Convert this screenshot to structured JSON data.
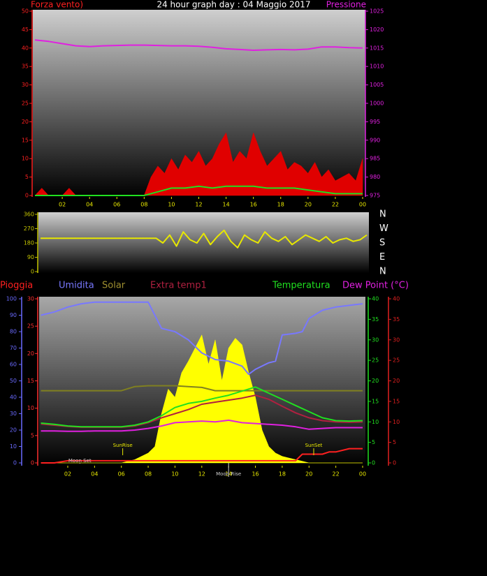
{
  "chart_data": [
    {
      "type": "line",
      "title": "24 hour graph day : 04 Maggio 2017",
      "title_color": "#ffffff",
      "y_label": "Forza vento)",
      "y_color": "#ff2020",
      "y2_label": "Pressione",
      "y2_color": "#e020e0",
      "x_color": "#e8e800",
      "xlim": [
        0,
        24
      ],
      "xticks": [
        {
          "value": 2,
          "label": "02"
        },
        {
          "value": 4,
          "label": "04"
        },
        {
          "value": 6,
          "label": "06"
        },
        {
          "value": 8,
          "label": "08"
        },
        10,
        12,
        14,
        16,
        18,
        20,
        22,
        {
          "value": 24,
          "label": "00"
        }
      ],
      "ylim": [
        0,
        50
      ],
      "yticks": [
        0,
        5,
        10,
        15,
        20,
        25,
        30,
        35,
        40,
        45,
        50
      ],
      "y2lim": [
        975,
        1025
      ],
      "y2ticks": [
        975,
        980,
        985,
        990,
        995,
        1000,
        1005,
        1010,
        1015,
        1020,
        1025
      ],
      "series": [
        {
          "color": "#ff0000",
          "fill": "#e00000",
          "axis": "y",
          "x": [
            0,
            0.5,
            1,
            1.5,
            2,
            2.5,
            3,
            3.5,
            4,
            4.5,
            5,
            5.5,
            6,
            6.5,
            7,
            7.5,
            8,
            8.5,
            9,
            9.5,
            10,
            10.5,
            11,
            11.5,
            12,
            12.5,
            13,
            13.5,
            14,
            14.5,
            15,
            15.5,
            16,
            16.5,
            17,
            17.5,
            18,
            18.5,
            19,
            19.5,
            20,
            20.5,
            21,
            21.5,
            22,
            22.5,
            23,
            23.5,
            24
          ],
          "values": [
            0,
            2,
            0,
            0,
            0,
            2,
            0,
            0,
            0,
            0,
            0,
            0,
            0,
            0,
            0,
            0,
            0,
            5,
            8,
            6,
            10,
            7,
            11,
            9,
            12,
            8,
            10,
            14,
            17,
            9,
            12,
            10,
            17,
            12,
            8,
            10,
            12,
            7,
            9,
            8,
            6,
            9,
            5,
            7,
            4,
            5,
            6,
            4,
            10
          ]
        },
        {
          "color": "#20e020",
          "axis": "y",
          "x": [
            0,
            1,
            2,
            3,
            4,
            5,
            6,
            7,
            8,
            9,
            10,
            11,
            12,
            13,
            14,
            15,
            16,
            17,
            18,
            19,
            20,
            21,
            22,
            23,
            24
          ],
          "values": [
            0,
            0,
            0,
            0,
            0,
            0,
            0,
            0,
            0,
            1,
            2,
            2,
            2.5,
            2,
            2.5,
            2.5,
            2.5,
            2,
            2,
            2,
            1.5,
            1,
            0.5,
            0.5,
            0.5
          ]
        },
        {
          "color": "#e020e0",
          "axis": "y2",
          "x": [
            0,
            1,
            2,
            3,
            4,
            5,
            6,
            7,
            8,
            9,
            10,
            11,
            12,
            13,
            14,
            15,
            16,
            17,
            18,
            19,
            20,
            21,
            22,
            23,
            24
          ],
          "values": [
            1017.2,
            1016.8,
            1016.2,
            1015.6,
            1015.4,
            1015.6,
            1015.7,
            1015.8,
            1015.8,
            1015.7,
            1015.6,
            1015.6,
            1015.5,
            1015.2,
            1014.8,
            1014.6,
            1014.4,
            1014.5,
            1014.6,
            1014.5,
            1014.7,
            1015.3,
            1015.3,
            1015.1,
            1015.0
          ]
        }
      ]
    },
    {
      "type": "line",
      "y_color": "#c8c800",
      "y2_color": "#ffffff",
      "xlim": [
        0,
        24
      ],
      "ylim": [
        0,
        360
      ],
      "yticks": [
        0,
        90,
        180,
        270,
        360
      ],
      "y2lim": [
        0,
        360
      ],
      "y2ticks": [
        {
          "value": 0,
          "label": "N"
        },
        {
          "value": 90,
          "label": "E"
        },
        {
          "value": 180,
          "label": "S"
        },
        {
          "value": 270,
          "label": "W"
        },
        {
          "value": 360,
          "label": "N"
        }
      ],
      "series": [
        {
          "color": "#e8e800",
          "axis": "y",
          "x": [
            0,
            0.5,
            1,
            1.5,
            2,
            2.5,
            3,
            3.5,
            4,
            4.5,
            5,
            5.5,
            6,
            6.5,
            7,
            7.5,
            8,
            8.5,
            9,
            9.5,
            10,
            10.5,
            11,
            11.5,
            12,
            12.5,
            13,
            13.5,
            14,
            14.5,
            15,
            15.5,
            16,
            16.5,
            17,
            17.5,
            18,
            18.5,
            19,
            19.5,
            20,
            20.5,
            21,
            21.5,
            22,
            22.5,
            23,
            23.5,
            24
          ],
          "values": [
            210,
            210,
            210,
            210,
            210,
            210,
            210,
            210,
            210,
            210,
            210,
            210,
            210,
            210,
            210,
            210,
            210,
            210,
            180,
            230,
            160,
            250,
            200,
            180,
            240,
            170,
            220,
            260,
            190,
            150,
            230,
            200,
            180,
            250,
            210,
            190,
            220,
            170,
            200,
            230,
            210,
            190,
            220,
            180,
            200,
            210,
            190,
            200,
            230
          ]
        }
      ]
    },
    {
      "type": "line",
      "x_color": "#e8e800",
      "xlim": [
        0,
        24
      ],
      "xticks": [
        {
          "value": 2,
          "label": "02"
        },
        {
          "value": 4,
          "label": "04"
        },
        {
          "value": 6,
          "label": "06"
        },
        {
          "value": 8,
          "label": "08"
        },
        10,
        12,
        14,
        16,
        18,
        20,
        22,
        {
          "value": 24,
          "label": "00"
        }
      ],
      "ylim": [
        0,
        100
      ],
      "yticks": [
        0,
        10,
        20,
        30,
        40,
        50,
        60,
        70,
        80,
        90,
        100
      ],
      "y_color": "#6a6aff",
      "y2lim": [
        0,
        30
      ],
      "y2ticks": [
        0,
        5,
        10,
        15,
        20,
        25,
        30
      ],
      "y2_color": "#ff3030",
      "y3lim": [
        0,
        40
      ],
      "y3ticks": [
        0,
        5,
        10,
        15,
        20,
        25,
        30,
        35,
        40
      ],
      "y3_color": "#20e020",
      "y4lim": [
        0,
        40
      ],
      "y4ticks": [
        0,
        5,
        10,
        15,
        20,
        25,
        30,
        35,
        40
      ],
      "y4_color": "#e02020",
      "annotations": [
        {
          "text": "Moon Set",
          "x": 2.9,
          "color": "#d0d0d0"
        },
        {
          "text": "SunRise",
          "x": 6.1,
          "color": "#e8e800"
        },
        {
          "text": "Moon Rise",
          "x": 14.0,
          "color": "#d0d0d0"
        },
        {
          "text": "SunSet",
          "x": 20.35,
          "color": "#e8e800"
        }
      ],
      "series": [
        {
          "name": "Solar",
          "color": "#a09030",
          "fill": "#ffff00",
          "axis": "y",
          "x": [
            0,
            0.5,
            1,
            1.5,
            2,
            2.5,
            3,
            3.5,
            4,
            4.5,
            5,
            5.5,
            6,
            6.5,
            7,
            7.5,
            8,
            8.5,
            9,
            9.5,
            10,
            10.5,
            11,
            11.5,
            12,
            12.5,
            13,
            13.5,
            14,
            14.5,
            15,
            15.5,
            16,
            16.5,
            17,
            17.5,
            18,
            18.5,
            19,
            19.5,
            20,
            20.5,
            21,
            21.5,
            22,
            22.5,
            23,
            23.5,
            24
          ],
          "values": [
            0,
            0,
            0,
            0,
            0,
            0,
            0,
            0,
            0,
            0,
            0,
            0,
            0,
            1,
            2,
            4,
            6,
            10,
            30,
            45,
            40,
            55,
            62,
            70,
            78,
            60,
            75,
            50,
            70,
            76,
            72,
            55,
            40,
            20,
            10,
            6,
            4,
            3,
            2,
            1,
            0,
            0,
            0,
            0,
            0,
            0,
            0,
            0,
            0
          ]
        },
        {
          "color": "#808020",
          "axis": "y",
          "x": [
            0,
            1,
            2,
            3,
            4,
            5,
            6,
            7,
            8,
            9,
            10,
            11,
            12,
            13,
            14,
            15,
            16,
            17,
            18,
            19,
            20,
            21,
            22,
            23,
            24
          ],
          "values": [
            44,
            44,
            44,
            44,
            44,
            44,
            44,
            46.5,
            47,
            47,
            47,
            46.5,
            46,
            44,
            44,
            44,
            44,
            44,
            44,
            44,
            44,
            44,
            44,
            44,
            44
          ]
        },
        {
          "name": "Umidita",
          "color": "#7878ff",
          "axis": "y",
          "x": [
            0,
            1,
            2,
            3,
            4,
            5,
            6,
            7,
            8,
            9,
            10,
            11,
            12,
            13,
            14,
            15,
            15.5,
            16,
            17,
            17.5,
            18,
            19,
            19.5,
            20,
            21,
            22,
            23,
            24
          ],
          "values": [
            90,
            92,
            95,
            97,
            98,
            98,
            98,
            98,
            98,
            82,
            80,
            75,
            67,
            63,
            62,
            59,
            54,
            57,
            61,
            62,
            78,
            79,
            80,
            88,
            93,
            95,
            96,
            97
          ]
        },
        {
          "name": "Extra temp1",
          "color": "#b02040",
          "axis": "y3",
          "x": [
            0,
            1,
            2,
            3,
            4,
            5,
            6,
            7,
            8,
            9,
            10,
            11,
            12,
            13,
            14,
            15,
            16,
            17,
            18,
            19,
            20,
            21,
            22,
            23,
            24
          ],
          "values": [
            9.5,
            9.2,
            8.9,
            8.7,
            8.7,
            8.7,
            8.7,
            9,
            9.8,
            11,
            12,
            13,
            14.3,
            14.8,
            15.3,
            15.8,
            16.5,
            15.5,
            13.8,
            12.2,
            11,
            10.3,
            10,
            9.9,
            10
          ]
        },
        {
          "name": "Temperatura",
          "color": "#20e020",
          "axis": "y3",
          "x": [
            0,
            1,
            2,
            3,
            4,
            5,
            6,
            7,
            8,
            9,
            10,
            11,
            12,
            13,
            14,
            15,
            16,
            17,
            18,
            19,
            20,
            21,
            22,
            23,
            24
          ],
          "values": [
            9.7,
            9.4,
            9,
            8.8,
            8.8,
            8.8,
            8.8,
            9.2,
            10,
            11.5,
            13.5,
            14.5,
            15,
            15.8,
            16.5,
            17.5,
            18.5,
            17,
            15.5,
            14,
            12.5,
            11,
            10.3,
            10.2,
            10.3
          ]
        },
        {
          "name": "Dew Point (°C)",
          "color": "#e020e0",
          "axis": "y4",
          "x": [
            0,
            1,
            2,
            3,
            4,
            5,
            6,
            7,
            8,
            9,
            10,
            11,
            12,
            13,
            14,
            15,
            16,
            17,
            18,
            19,
            20,
            21,
            22,
            23,
            24
          ],
          "values": [
            7.8,
            7.8,
            7.7,
            7.7,
            7.8,
            7.8,
            7.8,
            8,
            8.4,
            9,
            9.8,
            10,
            10.2,
            10,
            10.4,
            9.8,
            9.6,
            9.4,
            9.2,
            8.8,
            8.2,
            8.4,
            8.6,
            8.6,
            8.6
          ]
        },
        {
          "name": "Pioggia",
          "color": "#ff2020",
          "axis": "y2",
          "x": [
            0,
            1,
            2,
            3,
            4,
            5,
            6,
            7,
            8,
            9,
            10,
            11,
            12,
            13,
            14,
            15,
            16,
            17,
            18,
            19,
            19.5,
            20,
            21,
            21.5,
            22,
            23,
            24
          ],
          "values": [
            0,
            0,
            0.4,
            0.4,
            0.4,
            0.4,
            0.4,
            0.4,
            0.4,
            0.4,
            0.4,
            0.4,
            0.4,
            0.4,
            0.4,
            0.4,
            0.4,
            0.4,
            0.4,
            0.4,
            1.6,
            1.6,
            1.6,
            2,
            2,
            2.6,
            2.6
          ]
        }
      ]
    }
  ]
}
